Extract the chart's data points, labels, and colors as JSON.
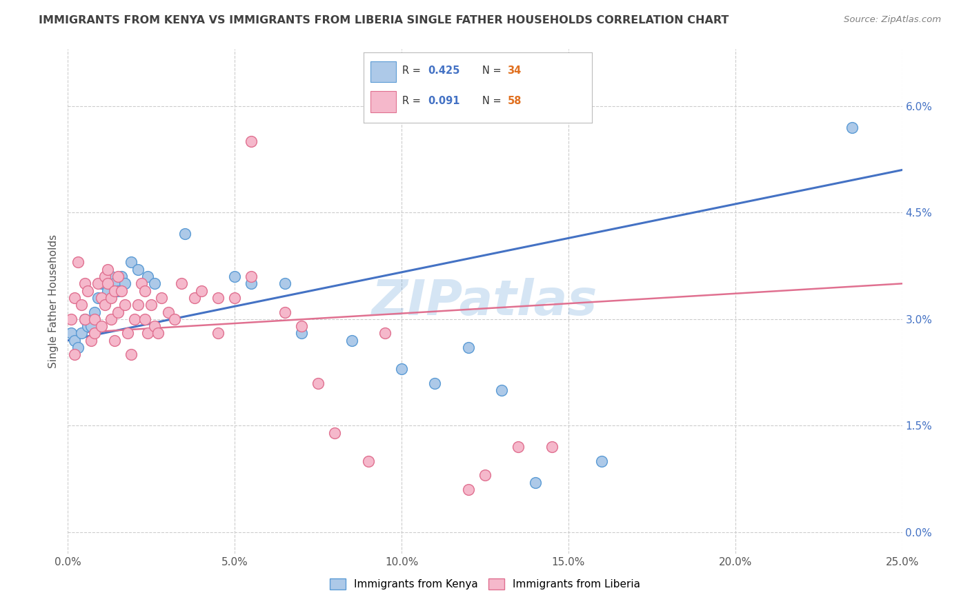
{
  "title": "IMMIGRANTS FROM KENYA VS IMMIGRANTS FROM LIBERIA SINGLE FATHER HOUSEHOLDS CORRELATION CHART",
  "source": "Source: ZipAtlas.com",
  "ylabel_label": "Single Father Households",
  "xlim": [
    0.0,
    25.0
  ],
  "ylim_data": [
    -0.3,
    6.8
  ],
  "yticks": [
    0.0,
    1.5,
    3.0,
    4.5,
    6.0
  ],
  "xticks": [
    0.0,
    5.0,
    10.0,
    15.0,
    20.0,
    25.0
  ],
  "kenya_R": 0.425,
  "kenya_N": 34,
  "liberia_R": 0.091,
  "liberia_N": 58,
  "kenya_color": "#adc9e8",
  "kenya_edge_color": "#5b9bd5",
  "liberia_color": "#f5b8cb",
  "liberia_edge_color": "#e07090",
  "trend_kenya_color": "#4472c4",
  "trend_liberia_color": "#e07090",
  "watermark": "ZIPatlas",
  "legend_R_color": "#4472c4",
  "legend_N_color": "#e07020",
  "title_color": "#404040",
  "source_color": "#808080",
  "axis_tick_color": "#555555",
  "right_axis_color": "#4472c4",
  "grid_color": "#cccccc",
  "kenya_x": [
    0.1,
    0.2,
    0.3,
    0.4,
    0.5,
    0.6,
    0.7,
    0.8,
    0.9,
    1.0,
    1.1,
    1.2,
    1.3,
    1.4,
    1.5,
    1.6,
    1.7,
    1.9,
    2.1,
    2.4,
    2.6,
    3.5,
    5.0,
    5.5,
    6.5,
    7.0,
    8.5,
    10.0,
    11.0,
    12.0,
    13.0,
    14.0,
    16.0,
    23.5
  ],
  "kenya_y": [
    2.8,
    2.7,
    2.6,
    2.8,
    3.0,
    2.9,
    2.9,
    3.1,
    3.3,
    3.5,
    3.5,
    3.4,
    3.6,
    3.5,
    3.4,
    3.6,
    3.5,
    3.8,
    3.7,
    3.6,
    3.5,
    4.2,
    3.6,
    3.5,
    3.5,
    2.8,
    2.7,
    2.3,
    2.1,
    2.6,
    2.0,
    0.7,
    1.0,
    5.7
  ],
  "liberia_x": [
    0.1,
    0.2,
    0.2,
    0.3,
    0.4,
    0.5,
    0.5,
    0.6,
    0.7,
    0.8,
    0.8,
    0.9,
    1.0,
    1.0,
    1.1,
    1.1,
    1.2,
    1.2,
    1.3,
    1.3,
    1.4,
    1.4,
    1.5,
    1.5,
    1.6,
    1.7,
    1.8,
    1.9,
    2.0,
    2.1,
    2.2,
    2.3,
    2.3,
    2.4,
    2.5,
    2.6,
    2.7,
    2.8,
    3.0,
    3.2,
    3.4,
    3.8,
    4.0,
    4.5,
    4.5,
    5.0,
    5.5,
    5.5,
    6.5,
    7.0,
    7.5,
    8.0,
    9.0,
    9.5,
    12.0,
    12.5,
    13.5,
    14.5
  ],
  "liberia_y": [
    3.0,
    3.3,
    2.5,
    3.8,
    3.2,
    3.0,
    3.5,
    3.4,
    2.7,
    3.0,
    2.8,
    3.5,
    3.3,
    2.9,
    3.6,
    3.2,
    3.7,
    3.5,
    3.3,
    3.0,
    2.7,
    3.4,
    3.1,
    3.6,
    3.4,
    3.2,
    2.8,
    2.5,
    3.0,
    3.2,
    3.5,
    3.0,
    3.4,
    2.8,
    3.2,
    2.9,
    2.8,
    3.3,
    3.1,
    3.0,
    3.5,
    3.3,
    3.4,
    3.3,
    2.8,
    3.3,
    3.6,
    5.5,
    3.1,
    2.9,
    2.1,
    1.4,
    1.0,
    2.8,
    0.6,
    0.8,
    1.2,
    1.2
  ],
  "kenya_trend_x0": 0.0,
  "kenya_trend_y0": 2.7,
  "kenya_trend_x1": 25.0,
  "kenya_trend_y1": 5.1,
  "liberia_trend_x0": 0.0,
  "liberia_trend_y0": 2.8,
  "liberia_trend_x1": 25.0,
  "liberia_trend_y1": 3.5
}
